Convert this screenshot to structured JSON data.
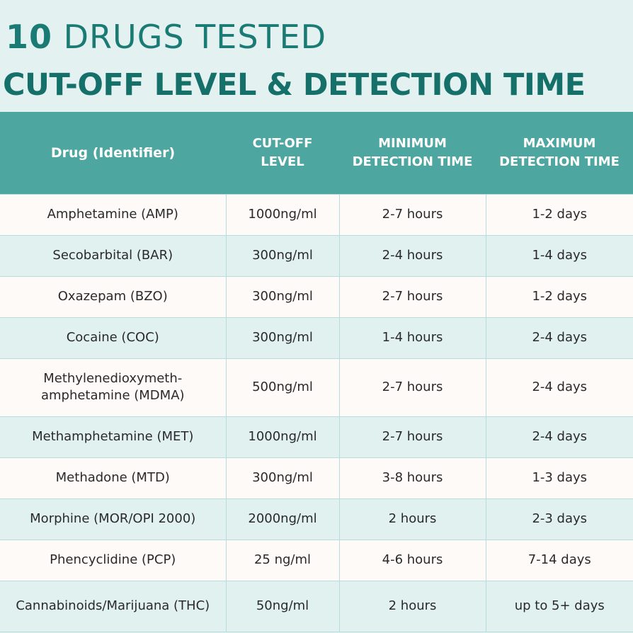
{
  "heading": {
    "number": "10",
    "title_rest": "DRUGS TESTED",
    "subtitle": "CUT-OFF LEVEL & DETECTION TIME"
  },
  "table": {
    "headers": {
      "drug": "Drug (Identifier)",
      "cutoff_line1": "CUT-OFF",
      "cutoff_line2": "LEVEL",
      "min_line1": "MINIMUM",
      "min_line2": "DETECTION TIME",
      "max_line1": "MAXIMUM",
      "max_line2": "DETECTION TIME"
    },
    "rows": [
      {
        "drug": "Amphetamine (AMP)",
        "drug_line2": "",
        "cutoff": "1000ng/ml",
        "min": "2-7 hours",
        "max": "1-2 days"
      },
      {
        "drug": "Secobarbital (BAR)",
        "drug_line2": "",
        "cutoff": "300ng/ml",
        "min": "2-4 hours",
        "max": "1-4 days"
      },
      {
        "drug": "Oxazepam (BZO)",
        "drug_line2": "",
        "cutoff": "300ng/ml",
        "min": "2-7 hours",
        "max": "1-2 days"
      },
      {
        "drug": "Cocaine (COC)",
        "drug_line2": "",
        "cutoff": "300ng/ml",
        "min": "1-4 hours",
        "max": "2-4 days"
      },
      {
        "drug": "Methylenedioxymeth-",
        "drug_line2": "amphetamine (MDMA)",
        "cutoff": "500ng/ml",
        "min": "2-7 hours",
        "max": "2-4 days"
      },
      {
        "drug": "Methamphetamine (MET)",
        "drug_line2": "",
        "cutoff": "1000ng/ml",
        "min": "2-7 hours",
        "max": "2-4 days"
      },
      {
        "drug": "Methadone (MTD)",
        "drug_line2": "",
        "cutoff": "300ng/ml",
        "min": "3-8 hours",
        "max": "1-3 days"
      },
      {
        "drug": "Morphine (MOR/OPI 2000)",
        "drug_line2": "",
        "cutoff": "2000ng/ml",
        "min": "2 hours",
        "max": "2-3 days"
      },
      {
        "drug": "Phencyclidine (PCP)",
        "drug_line2": "",
        "cutoff": "25 ng/ml",
        "min": "4-6 hours",
        "max": "7-14 days"
      },
      {
        "drug": "Cannabinoids/Marijuana (THC)",
        "drug_line2": "",
        "cutoff": "50ng/ml",
        "min": "2 hours",
        "max": "up to 5+ days"
      }
    ]
  },
  "colors": {
    "title": "#1a7a74",
    "header_bg": "#4ea6a0",
    "row_light": "#fdfaf8",
    "row_tint": "#e1f1f0"
  }
}
